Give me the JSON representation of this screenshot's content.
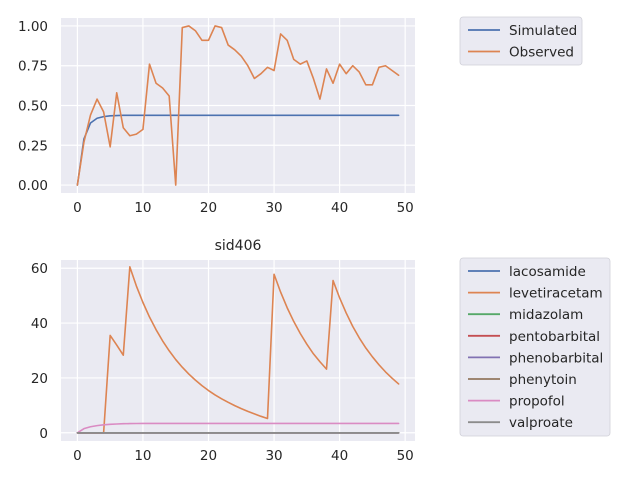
{
  "chart_data": [
    {
      "type": "line",
      "title": "",
      "xlabel": "",
      "ylabel": "",
      "xlim": [
        -2.5,
        51.5
      ],
      "ylim": [
        -0.05,
        1.05
      ],
      "xticks": [
        0,
        10,
        20,
        30,
        40,
        50
      ],
      "yticks": [
        0.0,
        0.25,
        0.5,
        0.75,
        1.0
      ],
      "ytick_labels": [
        "0.00",
        "0.25",
        "0.50",
        "0.75",
        "1.00"
      ],
      "grid": true,
      "legend_placement": "outside-right-top",
      "series": [
        {
          "name": "Simulated",
          "color": "#4C72B0",
          "x": [
            0,
            1,
            2,
            3,
            4,
            5,
            6,
            7,
            8,
            9,
            10,
            11,
            12,
            13,
            14,
            15,
            16,
            17,
            18,
            19,
            20,
            21,
            22,
            23,
            24,
            25,
            26,
            27,
            28,
            29,
            30,
            31,
            32,
            33,
            34,
            35,
            36,
            37,
            38,
            39,
            40,
            41,
            42,
            43,
            44,
            45,
            46,
            47,
            48,
            49
          ],
          "y": [
            0,
            0.29,
            0.39,
            0.42,
            0.43,
            0.435,
            0.437,
            0.438,
            0.438,
            0.438,
            0.438,
            0.438,
            0.438,
            0.438,
            0.438,
            0.438,
            0.438,
            0.438,
            0.438,
            0.438,
            0.438,
            0.438,
            0.438,
            0.438,
            0.438,
            0.438,
            0.438,
            0.438,
            0.438,
            0.438,
            0.438,
            0.438,
            0.438,
            0.438,
            0.438,
            0.438,
            0.438,
            0.438,
            0.438,
            0.438,
            0.438,
            0.438,
            0.438,
            0.438,
            0.438,
            0.438,
            0.438,
            0.438,
            0.438,
            0.438
          ]
        },
        {
          "name": "Observed",
          "color": "#DD8452",
          "x": [
            0,
            1,
            2,
            3,
            4,
            5,
            6,
            7,
            8,
            9,
            10,
            11,
            12,
            13,
            14,
            15,
            16,
            17,
            18,
            19,
            20,
            21,
            22,
            23,
            24,
            25,
            26,
            27,
            28,
            29,
            30,
            31,
            32,
            33,
            34,
            35,
            36,
            37,
            38,
            39,
            40,
            41,
            42,
            43,
            44,
            45,
            46,
            47,
            48,
            49
          ],
          "y": [
            0,
            0.27,
            0.44,
            0.54,
            0.46,
            0.24,
            0.58,
            0.36,
            0.31,
            0.32,
            0.35,
            0.76,
            0.64,
            0.61,
            0.56,
            0.0,
            0.99,
            1.0,
            0.97,
            0.91,
            0.91,
            1.0,
            0.99,
            0.88,
            0.85,
            0.81,
            0.75,
            0.67,
            0.7,
            0.74,
            0.72,
            0.95,
            0.91,
            0.79,
            0.76,
            0.78,
            0.67,
            0.54,
            0.73,
            0.64,
            0.76,
            0.7,
            0.75,
            0.71,
            0.63,
            0.63,
            0.74,
            0.75,
            0.72,
            0.69
          ]
        }
      ]
    },
    {
      "type": "line",
      "title": "sid406",
      "xlabel": "",
      "ylabel": "",
      "xlim": [
        -2.5,
        51.5
      ],
      "ylim": [
        -3,
        63
      ],
      "xticks": [
        0,
        10,
        20,
        30,
        40,
        50
      ],
      "yticks": [
        0,
        20,
        40,
        60
      ],
      "ytick_labels": [
        "0",
        "20",
        "40",
        "60"
      ],
      "grid": true,
      "legend_placement": "outside-right-top",
      "series": [
        {
          "name": "lacosamide",
          "color": "#4C72B0",
          "x": [
            0,
            49
          ],
          "y": [
            0,
            0
          ]
        },
        {
          "name": "levetiracetam",
          "color": "#DD8452",
          "x": [
            0,
            1,
            2,
            3,
            4,
            5,
            6,
            7,
            8,
            9,
            10,
            11,
            12,
            13,
            14,
            15,
            16,
            17,
            18,
            19,
            20,
            21,
            22,
            23,
            24,
            25,
            26,
            27,
            28,
            29,
            30,
            31,
            32,
            33,
            34,
            35,
            36,
            37,
            38,
            39,
            40,
            41,
            42,
            43,
            44,
            45,
            46,
            47,
            48,
            49
          ],
          "y": [
            0,
            0,
            0,
            0,
            0,
            35.5,
            32,
            28.3,
            60.5,
            53.5,
            47.5,
            42.2,
            37.6,
            33.5,
            29.9,
            26.7,
            23.9,
            21.4,
            19.2,
            17.2,
            15.4,
            13.8,
            12.4,
            11.1,
            9.9,
            8.8,
            7.8,
            6.9,
            6.0,
            5.2,
            57.8,
            51.3,
            45.6,
            40.6,
            36.2,
            32.3,
            28.8,
            25.9,
            23.2,
            55.5,
            49.2,
            43.7,
            38.8,
            34.6,
            30.9,
            27.7,
            24.8,
            22.2,
            19.9,
            17.8
          ]
        },
        {
          "name": "midazolam",
          "color": "#55A868",
          "x": [
            0,
            49
          ],
          "y": [
            0,
            0
          ]
        },
        {
          "name": "pentobarbital",
          "color": "#C44E52",
          "x": [
            0,
            49
          ],
          "y": [
            0,
            0
          ]
        },
        {
          "name": "phenobarbital",
          "color": "#8172B3",
          "x": [
            0,
            49
          ],
          "y": [
            0,
            0
          ]
        },
        {
          "name": "phenytoin",
          "color": "#937860",
          "x": [
            0,
            49
          ],
          "y": [
            0,
            0
          ]
        },
        {
          "name": "propofol",
          "color": "#DA8BC3",
          "x": [
            0,
            1,
            2,
            3,
            4,
            5,
            6,
            7,
            8,
            9,
            10,
            11,
            12,
            13,
            14,
            15,
            16,
            17,
            18,
            19,
            20,
            21,
            22,
            23,
            24,
            25,
            26,
            27,
            28,
            29,
            30,
            31,
            32,
            33,
            34,
            35,
            36,
            37,
            38,
            39,
            40,
            41,
            42,
            43,
            44,
            45,
            46,
            47,
            48,
            49
          ],
          "y": [
            0,
            1.5,
            2.2,
            2.6,
            2.9,
            3.1,
            3.2,
            3.3,
            3.35,
            3.38,
            3.4,
            3.4,
            3.4,
            3.4,
            3.4,
            3.4,
            3.4,
            3.4,
            3.4,
            3.4,
            3.4,
            3.4,
            3.4,
            3.4,
            3.4,
            3.4,
            3.4,
            3.4,
            3.4,
            3.4,
            3.4,
            3.4,
            3.4,
            3.4,
            3.4,
            3.4,
            3.4,
            3.4,
            3.4,
            3.4,
            3.4,
            3.4,
            3.4,
            3.4,
            3.4,
            3.4,
            3.4,
            3.4,
            3.4,
            3.4
          ]
        },
        {
          "name": "valproate",
          "color": "#8C8C8C",
          "x": [
            0,
            49
          ],
          "y": [
            0,
            0
          ]
        }
      ]
    }
  ]
}
